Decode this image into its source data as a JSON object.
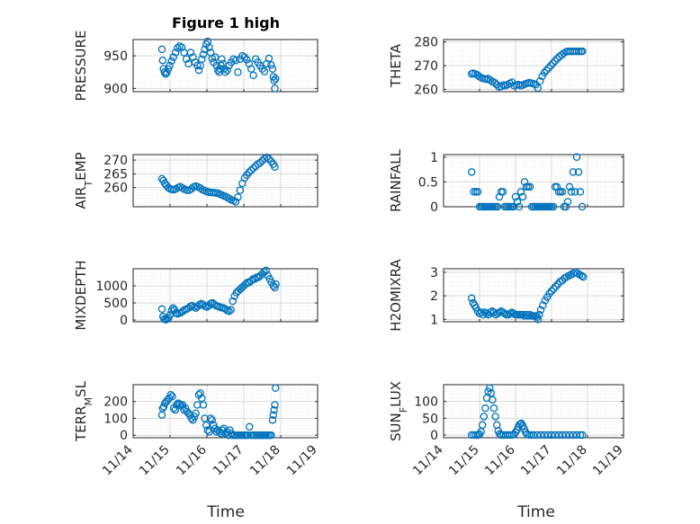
{
  "figure": {
    "title": "Figure 1 high",
    "xlabel": "Time",
    "xtick_labels": [
      "11/14",
      "11/15",
      "11/16",
      "11/17",
      "11/18",
      "11/19"
    ],
    "marker_color": "#0072bd"
  },
  "chart_data": [
    {
      "type": "scatter",
      "panel": "left-1",
      "title": "Figure 1 high",
      "ylabel": "PRESSURE",
      "ylim": [
        895,
        975
      ],
      "yticks": [
        900,
        950
      ],
      "ytick_labels": [
        "900",
        "950"
      ],
      "xlabel": "",
      "grid": "on, minor dotted",
      "x": [
        14.78,
        14.8,
        14.82,
        14.85,
        14.88,
        14.91,
        14.95,
        14.99,
        15.04,
        15.09,
        15.15,
        15.2,
        15.26,
        15.32,
        15.38,
        15.44,
        15.5,
        15.56,
        15.62,
        15.68,
        15.74,
        15.78,
        15.82,
        15.86,
        15.9,
        15.94,
        15.98,
        16.02,
        16.06,
        16.1,
        16.14,
        16.18,
        16.22,
        16.26,
        16.3,
        16.33,
        16.36,
        16.38,
        16.4,
        16.43,
        16.46,
        16.5,
        16.55,
        16.6,
        16.66,
        16.72,
        16.78,
        16.84,
        16.9,
        16.96,
        17.02,
        17.08,
        17.14,
        17.2,
        17.26,
        17.32,
        17.38,
        17.44,
        17.5,
        17.56,
        17.62,
        17.68,
        17.74,
        17.78,
        17.8,
        17.82,
        17.84,
        17.86
      ],
      "y": [
        960,
        943,
        930,
        925,
        922,
        924,
        930,
        935,
        942,
        948,
        955,
        962,
        965,
        963,
        955,
        945,
        938,
        955,
        948,
        940,
        935,
        928,
        935,
        945,
        952,
        960,
        968,
        972,
        963,
        955,
        946,
        940,
        948,
        935,
        928,
        925,
        930,
        935,
        945,
        938,
        930,
        925,
        928,
        935,
        940,
        945,
        943,
        925,
        945,
        950,
        948,
        944,
        938,
        930,
        920,
        945,
        940,
        935,
        930,
        926,
        938,
        946,
        936,
        930,
        918,
        912,
        900,
        915
      ]
    },
    {
      "type": "scatter",
      "panel": "right-1",
      "ylabel": "THETA",
      "ylim": [
        259,
        281
      ],
      "yticks": [
        260,
        270,
        280
      ],
      "ytick_labels": [
        "260",
        "270",
        "280"
      ],
      "xlabel": "",
      "grid": "on, minor dotted",
      "x": [
        14.78,
        14.82,
        14.88,
        14.94,
        15.0,
        15.06,
        15.12,
        15.18,
        15.24,
        15.3,
        15.36,
        15.42,
        15.48,
        15.54,
        15.6,
        15.66,
        15.72,
        15.78,
        15.84,
        15.9,
        15.96,
        16.02,
        16.08,
        16.14,
        16.2,
        16.26,
        16.32,
        16.38,
        16.44,
        16.5,
        16.56,
        16.62,
        16.68,
        16.74,
        16.8,
        16.86,
        16.92,
        16.98,
        17.04,
        17.1,
        17.16,
        17.22,
        17.28,
        17.34,
        17.4,
        17.46,
        17.52,
        17.58,
        17.64,
        17.7,
        17.76,
        17.82,
        17.86
      ],
      "y": [
        266.5,
        266.8,
        266.5,
        266,
        265.3,
        264.8,
        264.5,
        264.2,
        264.5,
        263.8,
        263.2,
        262.8,
        262,
        261,
        261.2,
        261.8,
        261.5,
        262,
        262.5,
        263,
        261.5,
        261.8,
        262,
        261.5,
        261.8,
        262.2,
        262.5,
        262.8,
        262.6,
        262.3,
        262,
        260.5,
        263.5,
        265.5,
        267,
        268,
        269,
        270,
        271,
        272,
        273,
        273.8,
        274.5,
        275.2,
        275.8,
        276,
        276,
        276,
        276,
        276,
        276,
        276,
        276
      ]
    },
    {
      "type": "scatter",
      "panel": "left-2",
      "ylabel": "AIR_TEMP",
      "ylim": [
        253,
        272
      ],
      "yticks": [
        260,
        265,
        270
      ],
      "ytick_labels": [
        "260",
        "265",
        "270"
      ],
      "xlabel": "",
      "grid": "on, minor dotted",
      "x": [
        14.78,
        14.82,
        14.86,
        14.9,
        14.95,
        15.0,
        15.05,
        15.1,
        15.16,
        15.22,
        15.28,
        15.34,
        15.4,
        15.46,
        15.52,
        15.58,
        15.64,
        15.7,
        15.76,
        15.82,
        15.88,
        15.94,
        16.0,
        16.06,
        16.12,
        16.18,
        16.24,
        16.3,
        16.36,
        16.42,
        16.48,
        16.54,
        16.6,
        16.66,
        16.72,
        16.78,
        16.84,
        16.9,
        16.96,
        17.02,
        17.08,
        17.14,
        17.2,
        17.26,
        17.32,
        17.38,
        17.44,
        17.5,
        17.56,
        17.62,
        17.68,
        17.74,
        17.8,
        17.84
      ],
      "y": [
        263.2,
        262.5,
        261.5,
        260.8,
        260,
        259.5,
        259.3,
        259.2,
        259.5,
        260,
        260.3,
        259.8,
        259.3,
        259,
        259,
        259.5,
        260.2,
        260.5,
        260.2,
        259.8,
        259.2,
        258.8,
        258.5,
        258.3,
        258.2,
        258.1,
        258,
        257.9,
        257.5,
        257.2,
        256.8,
        256.5,
        256,
        255.5,
        255.2,
        254.8,
        256.5,
        259,
        261.5,
        263.5,
        264.5,
        265.5,
        266.3,
        267,
        267.8,
        268.5,
        269,
        269.8,
        270.5,
        271,
        270.5,
        269.5,
        268.5,
        267.5
      ]
    },
    {
      "type": "scatter",
      "panel": "right-2",
      "ylabel": "RAINFALL",
      "ylim": [
        0,
        1.05
      ],
      "yticks": [
        0,
        0.5,
        1
      ],
      "ytick_labels": [
        "0",
        "0.5",
        "1"
      ],
      "xlabel": "",
      "grid": "on, minor dotted",
      "x": [
        14.78,
        14.84,
        14.9,
        14.95,
        15.0,
        15.05,
        15.1,
        15.15,
        15.2,
        15.25,
        15.3,
        15.35,
        15.4,
        15.45,
        15.5,
        15.55,
        15.6,
        15.65,
        15.7,
        15.75,
        15.8,
        15.85,
        15.9,
        15.95,
        16.0,
        16.05,
        16.1,
        16.15,
        16.2,
        16.25,
        16.3,
        16.35,
        16.4,
        16.45,
        16.5,
        16.55,
        16.6,
        16.65,
        16.7,
        16.75,
        16.8,
        16.85,
        16.9,
        16.95,
        17.0,
        17.05,
        17.1,
        17.15,
        17.2,
        17.25,
        17.3,
        17.35,
        17.4,
        17.45,
        17.5,
        17.55,
        17.6,
        17.65,
        17.7,
        17.75,
        17.8,
        17.85
      ],
      "y": [
        0.7,
        0.3,
        0.3,
        0.3,
        0,
        0,
        0,
        0,
        0,
        0,
        0,
        0,
        0,
        0,
        0,
        0.2,
        0.3,
        0.3,
        0,
        0,
        0,
        0,
        0,
        0,
        0.2,
        0.1,
        0,
        0.3,
        0.2,
        0.5,
        0.4,
        0.4,
        0.4,
        0,
        0,
        0,
        0,
        0,
        0,
        0,
        0,
        0,
        0,
        0,
        0,
        0,
        0.4,
        0.4,
        0.3,
        0.3,
        0.3,
        0,
        0,
        0.1,
        0.4,
        0.3,
        0.7,
        0.3,
        1.0,
        0.7,
        0.3,
        0.0
      ]
    },
    {
      "type": "scatter",
      "panel": "left-3",
      "ylabel": "MIXDEPTH",
      "ylim": [
        -50,
        1500
      ],
      "yticks": [
        0,
        500,
        1000
      ],
      "ytick_labels": [
        "0",
        "500",
        "1000"
      ],
      "xlabel": "",
      "grid": "on, minor dotted",
      "x": [
        14.78,
        14.81,
        14.84,
        14.88,
        14.92,
        14.96,
        15.0,
        15.04,
        15.08,
        15.12,
        15.16,
        15.2,
        15.25,
        15.3,
        15.35,
        15.4,
        15.45,
        15.5,
        15.55,
        15.6,
        15.65,
        15.7,
        15.75,
        15.8,
        15.85,
        15.9,
        15.95,
        16.0,
        16.05,
        16.1,
        16.15,
        16.2,
        16.25,
        16.3,
        16.35,
        16.4,
        16.45,
        16.5,
        16.55,
        16.6,
        16.65,
        16.7,
        16.75,
        16.8,
        16.85,
        16.9,
        16.95,
        17.0,
        17.05,
        17.1,
        17.15,
        17.2,
        17.25,
        17.3,
        17.35,
        17.4,
        17.45,
        17.5,
        17.55,
        17.6,
        17.65,
        17.7,
        17.75,
        17.8,
        17.84,
        17.87
      ],
      "y": [
        320,
        100,
        30,
        10,
        30,
        60,
        150,
        280,
        350,
        300,
        200,
        180,
        200,
        220,
        260,
        300,
        320,
        350,
        400,
        420,
        380,
        350,
        400,
        450,
        480,
        450,
        400,
        380,
        420,
        480,
        500,
        460,
        420,
        400,
        380,
        360,
        350,
        320,
        280,
        260,
        300,
        550,
        700,
        800,
        850,
        900,
        950,
        1000,
        1050,
        1100,
        1100,
        1150,
        1200,
        1200,
        1250,
        1250,
        1300,
        1350,
        1400,
        1450,
        1300,
        1200,
        1100,
        1000,
        950,
        1050
      ]
    },
    {
      "type": "scatter",
      "panel": "right-3",
      "ylabel": "H2OMIXRA",
      "ylim": [
        0.9,
        3.15
      ],
      "yticks": [
        1,
        2,
        3
      ],
      "ytick_labels": [
        "1",
        "2",
        "3"
      ],
      "xlabel": "",
      "grid": "on, minor dotted",
      "x": [
        14.78,
        14.82,
        14.86,
        14.9,
        14.95,
        15.0,
        15.05,
        15.1,
        15.15,
        15.2,
        15.25,
        15.3,
        15.35,
        15.4,
        15.45,
        15.5,
        15.55,
        15.6,
        15.65,
        15.7,
        15.75,
        15.8,
        15.85,
        15.9,
        15.95,
        16.0,
        16.05,
        16.1,
        16.15,
        16.2,
        16.25,
        16.3,
        16.35,
        16.4,
        16.45,
        16.5,
        16.55,
        16.6,
        16.62,
        16.66,
        16.7,
        16.76,
        16.82,
        16.88,
        16.94,
        17.0,
        17.06,
        17.12,
        17.18,
        17.24,
        17.3,
        17.36,
        17.42,
        17.48,
        17.54,
        17.6,
        17.66,
        17.72,
        17.78,
        17.84,
        17.88
      ],
      "y": [
        1.9,
        1.7,
        1.6,
        1.5,
        1.35,
        1.25,
        1.3,
        1.2,
        1.3,
        1.25,
        1.2,
        1.3,
        1.35,
        1.3,
        1.2,
        1.25,
        1.3,
        1.35,
        1.3,
        1.25,
        1.2,
        1.2,
        1.25,
        1.3,
        1.25,
        1.2,
        1.2,
        1.2,
        1.2,
        1.2,
        1.15,
        1.2,
        1.15,
        1.2,
        1.15,
        1.15,
        1.15,
        1.1,
        1.0,
        1.2,
        1.4,
        1.6,
        1.8,
        1.95,
        2.1,
        2.2,
        2.3,
        2.4,
        2.5,
        2.6,
        2.65,
        2.75,
        2.8,
        2.85,
        2.9,
        2.95,
        3.0,
        2.95,
        2.9,
        2.85,
        2.8
      ]
    },
    {
      "type": "scatter",
      "panel": "left-4",
      "ylabel": "TERR_MSL",
      "ylim": [
        -15,
        300
      ],
      "yticks": [
        0,
        100,
        200
      ],
      "ytick_labels": [
        "0",
        "100",
        "200"
      ],
      "xlabel": "Time",
      "grid": "on, minor dotted",
      "x": [
        14.78,
        14.8,
        14.83,
        14.86,
        14.9,
        14.94,
        14.98,
        15.02,
        15.06,
        15.1,
        15.14,
        15.18,
        15.22,
        15.26,
        15.3,
        15.34,
        15.38,
        15.42,
        15.46,
        15.5,
        15.54,
        15.58,
        15.62,
        15.66,
        15.7,
        15.74,
        15.78,
        15.82,
        15.86,
        15.9,
        15.94,
        15.98,
        16.02,
        16.06,
        16.1,
        16.14,
        16.18,
        16.22,
        16.26,
        16.3,
        16.34,
        16.38,
        16.42,
        16.46,
        16.5,
        16.54,
        16.58,
        16.62,
        16.66,
        16.7,
        16.75,
        16.8,
        16.85,
        16.9,
        16.95,
        17.0,
        17.05,
        17.1,
        17.15,
        17.2,
        17.25,
        17.3,
        17.35,
        17.4,
        17.45,
        17.5,
        17.55,
        17.6,
        17.65,
        17.7,
        17.74,
        17.78,
        17.8,
        17.82,
        17.84,
        17.86
      ],
      "y": [
        120,
        160,
        170,
        190,
        200,
        210,
        220,
        240,
        230,
        160,
        150,
        180,
        190,
        185,
        175,
        180,
        150,
        160,
        140,
        130,
        120,
        100,
        90,
        110,
        130,
        180,
        240,
        250,
        220,
        180,
        100,
        60,
        30,
        20,
        100,
        90,
        60,
        40,
        20,
        30,
        20,
        10,
        30,
        40,
        10,
        20,
        0,
        30,
        10,
        0,
        0,
        0,
        0,
        0,
        0,
        0,
        0,
        0,
        50,
        0,
        0,
        0,
        0,
        0,
        0,
        0,
        0,
        0,
        0,
        0,
        0,
        90,
        120,
        150,
        180,
        280
      ]
    },
    {
      "type": "scatter",
      "panel": "right-4",
      "ylabel": "SUN_FLUX",
      "ylim": [
        -8,
        150
      ],
      "yticks": [
        0,
        50,
        100
      ],
      "ytick_labels": [
        "0",
        "50",
        "100"
      ],
      "xlabel": "Time",
      "grid": "on, minor dotted",
      "x": [
        14.78,
        14.84,
        14.9,
        14.96,
        15.0,
        15.04,
        15.08,
        15.12,
        15.16,
        15.2,
        15.24,
        15.28,
        15.32,
        15.36,
        15.4,
        15.44,
        15.48,
        15.52,
        15.56,
        15.6,
        15.66,
        15.72,
        15.78,
        15.84,
        15.9,
        15.96,
        16.0,
        16.04,
        16.08,
        16.12,
        16.16,
        16.2,
        16.24,
        16.28,
        16.32,
        16.38,
        16.44,
        16.5,
        16.6,
        16.7,
        16.8,
        16.9,
        17.0,
        17.1,
        17.2,
        17.3,
        17.4,
        17.5,
        17.6,
        17.7,
        17.8,
        17.86
      ],
      "y": [
        0,
        0,
        0,
        0,
        2,
        10,
        30,
        55,
        80,
        110,
        130,
        140,
        125,
        105,
        80,
        55,
        30,
        12,
        3,
        0,
        0,
        0,
        0,
        0,
        0,
        2,
        8,
        15,
        25,
        32,
        35,
        28,
        18,
        8,
        2,
        0,
        0,
        0,
        0,
        0,
        0,
        0,
        0,
        0,
        0,
        0,
        0,
        0,
        0,
        0,
        0,
        0
      ]
    }
  ]
}
